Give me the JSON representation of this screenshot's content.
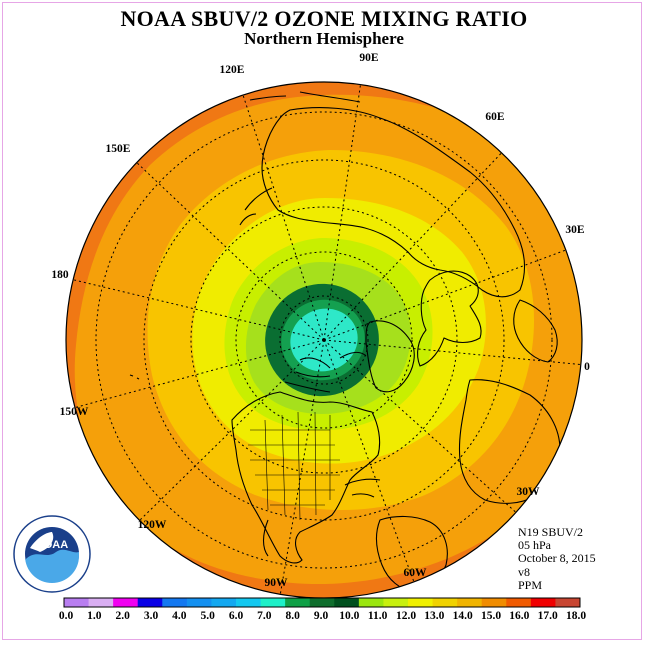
{
  "header": {
    "title": "NOAA SBUV/2 OZONE MIXING RATIO",
    "subtitle": "Northern Hemisphere"
  },
  "map": {
    "projection": "north-polar-stereographic",
    "longitude_labels": [
      "120E",
      "90E",
      "60E",
      "150E",
      "30E",
      "180",
      "0",
      "150W",
      "30W",
      "120W",
      "60W",
      "90W"
    ]
  },
  "info": {
    "satellite": "N19 SBUV/2",
    "pressure": "05 hPa",
    "date": "October 8, 2015",
    "version": "v8",
    "units": "PPM"
  },
  "colorbar": {
    "colors": [
      "#b87ef0",
      "#d9aef2",
      "#f000f0",
      "#0a00e6",
      "#1478f0",
      "#1490f0",
      "#14a8f0",
      "#14c8f0",
      "#1ef0c8",
      "#0fa046",
      "#0f6e2d",
      "#00501e",
      "#9be60f",
      "#c8f00f",
      "#f0f000",
      "#f0d200",
      "#f0b400",
      "#f08c00",
      "#f05a00",
      "#f00000",
      "#c84632"
    ],
    "tick_labels": [
      "0.0",
      "1.0",
      "2.0",
      "3.0",
      "4.0",
      "5.0",
      "6.0",
      "7.0",
      "8.0",
      "9.0",
      "10.0",
      "11.0",
      "12.0",
      "13.0",
      "14.0",
      "15.0",
      "16.0",
      "17.0",
      "18.0"
    ]
  },
  "logo": {
    "text": "NOAA",
    "ring_text": "NATIONAL OCEANIC AND ATMOSPHERIC ADMINISTRATION · U.S. DEPARTMENT OF COMMERCE"
  }
}
